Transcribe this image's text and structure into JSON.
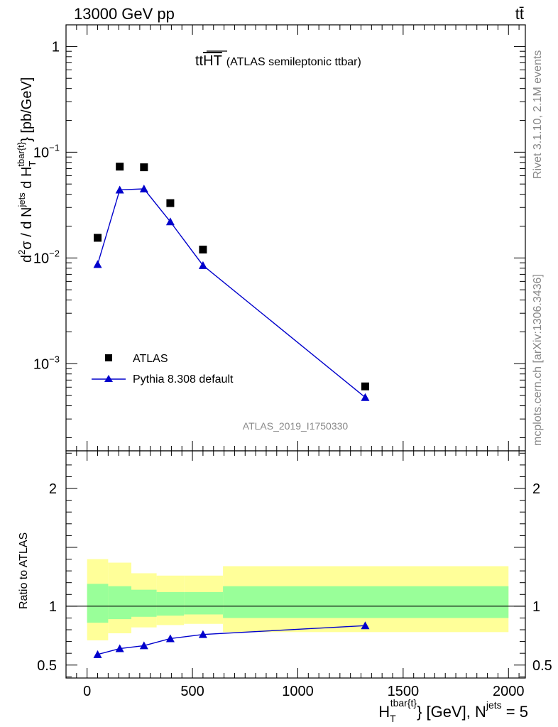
{
  "header": {
    "energy_label": "13000 GeV pp",
    "process_label": "tt̄"
  },
  "sidebar": {
    "rivet_label": "Rivet 3.1.10,  2.1M events",
    "mcplots_label": "mcplots.cern.ch [arXiv:1306.3436]"
  },
  "chart_data": [
    {
      "type": "scatter",
      "title_main": "tt",
      "title_overline": "HT",
      "title_suffix": "(ATLAS semileptonic ttbar)",
      "analysis_label": "ATLAS_2019_I1750330",
      "yscale": "log",
      "ylim": [
        0.00015,
        1.6
      ],
      "xlim": [
        -100,
        2080
      ],
      "ylabel": {
        "pre": "d",
        "sup1": "2",
        "mid": "σ / d N",
        "sup2": "jets",
        "mid2": " d H",
        "sub3": "T",
        "sup3": "tbar{t}",
        "post": "} [pb/GeV]"
      },
      "y_ticks": [
        {
          "value": 1,
          "base": "1",
          "exp": ""
        },
        {
          "value": 0.1,
          "base": "10",
          "exp": "−1"
        },
        {
          "value": 0.01,
          "base": "10",
          "exp": "−2"
        },
        {
          "value": 0.001,
          "base": "10",
          "exp": "−3"
        }
      ],
      "legend_position": "bottom-left",
      "series": [
        {
          "name": "ATLAS",
          "marker": "square",
          "color": "#000000",
          "x": [
            50,
            155,
            270,
            395,
            550,
            1320
          ],
          "y": [
            0.0155,
            0.073,
            0.072,
            0.033,
            0.012,
            0.00061
          ]
        },
        {
          "name": "Pythia 8.308 default",
          "marker": "triangle",
          "color": "#0000cc",
          "x": [
            50,
            155,
            270,
            395,
            550,
            1320
          ],
          "y": [
            0.0087,
            0.044,
            0.045,
            0.022,
            0.0085,
            0.00048
          ]
        }
      ]
    },
    {
      "type": "line",
      "ylabel": "Ratio to ATLAS",
      "ylim": [
        0.39,
        2.32
      ],
      "xlim": [
        -100,
        2080
      ],
      "y_ticks": [
        0.5,
        1,
        2
      ],
      "x_ticks": [
        0,
        500,
        1000,
        1500,
        2000
      ],
      "xlabel": {
        "pre": "H",
        "sub": "T",
        "sup": "tbar{t}",
        "mid": "} [GeV], N",
        "sup2": "jets",
        "post": " = 5"
      },
      "bands": [
        {
          "x0": 0,
          "x1": 100,
          "green": [
            0.86,
            1.19
          ],
          "yellow": [
            0.71,
            1.4
          ]
        },
        {
          "x0": 100,
          "x1": 210,
          "green": [
            0.89,
            1.17
          ],
          "yellow": [
            0.77,
            1.37
          ]
        },
        {
          "x0": 210,
          "x1": 330,
          "green": [
            0.91,
            1.14
          ],
          "yellow": [
            0.82,
            1.28
          ]
        },
        {
          "x0": 330,
          "x1": 460,
          "green": [
            0.92,
            1.12
          ],
          "yellow": [
            0.84,
            1.26
          ]
        },
        {
          "x0": 460,
          "x1": 645,
          "green": [
            0.93,
            1.12
          ],
          "yellow": [
            0.85,
            1.26
          ]
        },
        {
          "x0": 645,
          "x1": 2000,
          "green": [
            0.9,
            1.17
          ],
          "yellow": [
            0.78,
            1.34
          ]
        }
      ],
      "reference_line": 1,
      "series": [
        {
          "name": "Pythia 8.308 default",
          "color": "#0000cc",
          "x": [
            50,
            155,
            270,
            395,
            550,
            1320
          ],
          "y": [
            0.59,
            0.64,
            0.665,
            0.725,
            0.76,
            0.835
          ]
        }
      ]
    }
  ]
}
